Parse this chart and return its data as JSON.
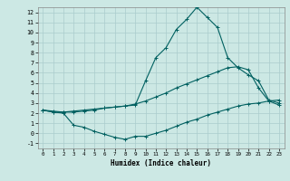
{
  "xlabel": "Humidex (Indice chaleur)",
  "bg_color": "#cce8e4",
  "grid_color": "#aacccc",
  "line_color": "#006060",
  "xlim": [
    -0.5,
    23.5
  ],
  "ylim": [
    -1.5,
    12.5
  ],
  "xticks": [
    0,
    1,
    2,
    3,
    4,
    5,
    6,
    7,
    8,
    9,
    10,
    11,
    12,
    13,
    14,
    15,
    16,
    17,
    18,
    19,
    20,
    21,
    22,
    23
  ],
  "yticks": [
    -1,
    0,
    1,
    2,
    3,
    4,
    5,
    6,
    7,
    8,
    9,
    10,
    11,
    12
  ],
  "line1_x": [
    0,
    1,
    2,
    3,
    4,
    5,
    6,
    7,
    8,
    9,
    10,
    11,
    12,
    13,
    14,
    15,
    16,
    17,
    18,
    19,
    20,
    21,
    22,
    23
  ],
  "line1_y": [
    2.3,
    2.2,
    2.1,
    2.2,
    2.3,
    2.4,
    2.5,
    2.6,
    2.7,
    2.8,
    5.2,
    7.5,
    8.5,
    10.3,
    11.3,
    12.5,
    11.5,
    10.5,
    7.5,
    6.5,
    5.8,
    5.2,
    3.3,
    3.0
  ],
  "line2_x": [
    0,
    1,
    2,
    3,
    4,
    5,
    6,
    7,
    8,
    9,
    10,
    11,
    12,
    13,
    14,
    15,
    16,
    17,
    18,
    19,
    20,
    21,
    22,
    23
  ],
  "line2_y": [
    2.3,
    2.1,
    2.1,
    2.1,
    2.2,
    2.3,
    2.5,
    2.6,
    2.7,
    2.9,
    3.2,
    3.6,
    4.0,
    4.5,
    4.9,
    5.3,
    5.7,
    6.1,
    6.5,
    6.6,
    6.3,
    4.5,
    3.2,
    2.8
  ],
  "line3_x": [
    0,
    1,
    2,
    3,
    4,
    5,
    6,
    7,
    8,
    9,
    10,
    11,
    12,
    13,
    14,
    15,
    16,
    17,
    18,
    19,
    20,
    21,
    22,
    23
  ],
  "line3_y": [
    2.3,
    2.1,
    2.0,
    0.8,
    0.6,
    0.2,
    -0.1,
    -0.4,
    -0.6,
    -0.3,
    -0.3,
    0.0,
    0.3,
    0.7,
    1.1,
    1.4,
    1.8,
    2.1,
    2.4,
    2.7,
    2.9,
    3.0,
    3.2,
    3.3
  ]
}
